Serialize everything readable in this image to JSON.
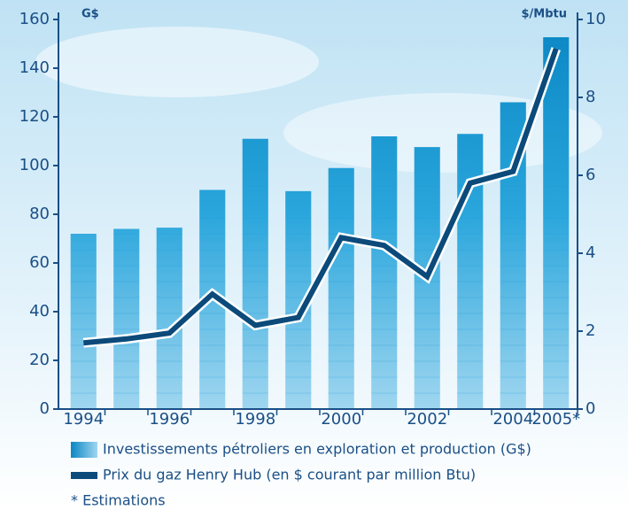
{
  "chart_data": {
    "type": "combo",
    "categories": [
      "1994",
      null,
      "1996",
      null,
      "1998",
      null,
      "2000",
      null,
      "2002",
      null,
      "2004",
      "2005*"
    ],
    "y_label": "G$",
    "y2_label": "$/Mbtu",
    "ylim": [
      0,
      160
    ],
    "yticks": [
      0,
      20,
      40,
      60,
      80,
      100,
      120,
      140,
      160
    ],
    "y2lim": [
      0,
      10
    ],
    "y2ticks": [
      0,
      2,
      4,
      6,
      8,
      10
    ],
    "series": [
      {
        "name": "Investissements pétroliers en exploration et production (G$)",
        "type": "bar",
        "color": "#1a9ad6",
        "values": [
          72,
          74,
          74.5,
          90,
          111,
          89.5,
          99,
          112,
          107.6,
          113,
          126,
          152.7
        ]
      },
      {
        "name": "Prix du gaz Henry Hub (en $ courant par million Btu)",
        "type": "line",
        "axis": "y2",
        "color": "#0b4a7a",
        "values": [
          1.7,
          1.8,
          1.95,
          2.95,
          2.15,
          2.35,
          4.4,
          4.2,
          3.4,
          5.8,
          6.1,
          9.25
        ]
      }
    ],
    "note": "* Estimations"
  }
}
